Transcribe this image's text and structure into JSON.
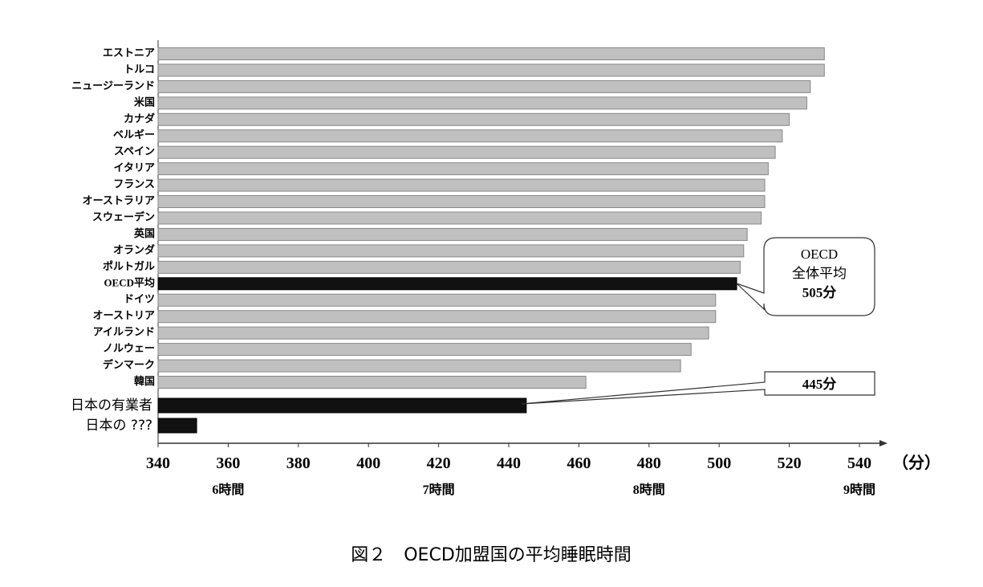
{
  "chart_data": {
    "type": "barh",
    "title": "図２　OECD加盟国の平均睡眠時間",
    "categories": [
      "エストニア",
      "トルコ",
      "ニュージーランド",
      "米国",
      "カナダ",
      "ベルギー",
      "スペイン",
      "イタリア",
      "フランス",
      "オーストラリア",
      "スウェーデン",
      "英国",
      "オランダ",
      "ポルトガル",
      "OECD平均",
      "ドイツ",
      "オーストリア",
      "アイルランド",
      "ノルウェー",
      "デンマーク",
      "韓国",
      "日本の有業者",
      "日本の ???"
    ],
    "values": [
      530,
      530,
      526,
      525,
      520,
      518,
      516,
      514,
      513,
      513,
      512,
      508,
      507,
      506,
      505,
      499,
      499,
      497,
      492,
      489,
      462,
      445,
      351
    ],
    "colors": [
      "#c0c0c0",
      "#c0c0c0",
      "#c0c0c0",
      "#c0c0c0",
      "#c0c0c0",
      "#c0c0c0",
      "#c0c0c0",
      "#c0c0c0",
      "#c0c0c0",
      "#c0c0c0",
      "#c0c0c0",
      "#c0c0c0",
      "#c0c0c0",
      "#c0c0c0",
      "#111111",
      "#c0c0c0",
      "#c0c0c0",
      "#c0c0c0",
      "#c0c0c0",
      "#c0c0c0",
      "#c0c0c0",
      "#111111",
      "#111111"
    ],
    "xlim": [
      340,
      540
    ],
    "xticks": [
      340,
      360,
      380,
      400,
      420,
      440,
      460,
      480,
      500,
      520,
      540
    ],
    "x_unit": "（分）",
    "hour_ticks": [
      {
        "value": 360,
        "label": "6時間"
      },
      {
        "value": 420,
        "label": "7時間"
      },
      {
        "value": 480,
        "label": "8時間"
      },
      {
        "value": 540,
        "label": "9時間"
      }
    ],
    "annotations": [
      {
        "lines": [
          "OECD",
          "全体平均",
          "505分"
        ]
      },
      {
        "lines": [
          "445分"
        ]
      }
    ]
  }
}
